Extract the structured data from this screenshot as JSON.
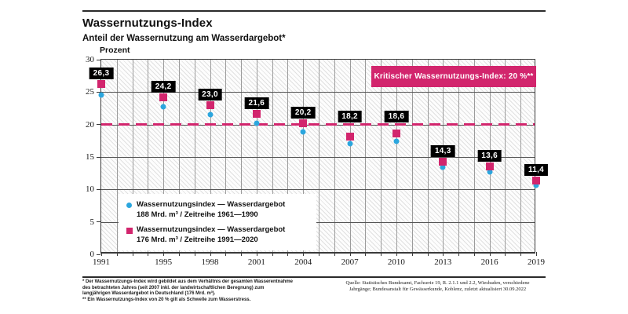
{
  "page": {
    "title": "Wassernutzungs-Index",
    "subtitle": "Anteil der Wassernutzung am Wasserdargebot*",
    "y_axis_unit": "Prozent"
  },
  "colors": {
    "pink": "#d2256d",
    "blue": "#2ba6de",
    "label_bg": "#000000",
    "label_text": "#ffffff"
  },
  "chart_data": {
    "type": "scatter",
    "title": "Wassernutzungs-Index",
    "subtitle": "Anteil der Wassernutzung am Wasserdargebot*",
    "ylabel": "Prozent",
    "xlim": [
      1991,
      2019
    ],
    "ylim": [
      0,
      30
    ],
    "y_ticks": [
      0,
      5,
      10,
      15,
      20,
      25,
      30
    ],
    "x_tick_years": [
      1991,
      1995,
      1998,
      2001,
      2004,
      2007,
      2010,
      2013,
      2016,
      2019
    ],
    "grid": "on",
    "x": [
      1991,
      1995,
      1998,
      2001,
      2004,
      2007,
      2010,
      2013,
      2016,
      2019
    ],
    "series": [
      {
        "name": "Wassernutzungsindex — Wasserdargebot 188 Mrd. m³ / Zeitreihe 1961—1990",
        "marker": "circle",
        "color": "#2ba6de",
        "values": [
          24.6,
          22.7,
          21.5,
          20.2,
          18.9,
          17.0,
          17.4,
          13.4,
          12.7,
          10.7
        ],
        "labeled": false
      },
      {
        "name": "Wassernutzungsindex — Wasserdargebot 176 Mrd. m³ / Zeitreihe 1991—2020",
        "marker": "square",
        "color": "#d2256d",
        "values": [
          26.3,
          24.2,
          23.0,
          21.6,
          20.2,
          18.2,
          18.6,
          14.3,
          13.6,
          11.4
        ],
        "display_labels": [
          "26,3",
          "24,2",
          "23,0",
          "21,6",
          "20,2",
          "18,2",
          "18,6",
          "14,3",
          "13,6",
          "11,4"
        ],
        "labeled": true
      }
    ],
    "critical_line": {
      "value": 20,
      "label": "Kritischer Wassernutzungs-Index: 20 %**",
      "color": "#d2256d"
    },
    "legend_position": "inside-bottom-left"
  },
  "legend": {
    "items": [
      {
        "marker": "circle",
        "color": "#2ba6de",
        "line1": "Wassernutzungsindex — Wasserdargebot",
        "line2": "188 Mrd. m³ / Zeitreihe 1961—1990"
      },
      {
        "marker": "square",
        "color": "#d2256d",
        "line1": "Wassernutzungsindex — Wasserdargebot",
        "line2": "176 Mrd. m³ / Zeitreihe 1991—2020"
      }
    ]
  },
  "footnotes": {
    "line1": "* Der Wassernutzungs-Index wird gebildet aus dem Verhältnis der gesamten Wasserentnahme",
    "line2": "des betrachteten Jahres (seit 2007 inkl. der landwirtschaftlichen Beregnung) zum",
    "line3": "langjährigen Wasserdargebot in Deutschland (176 Mrd. m³).",
    "line4": "** Ein Wassernutzungs-Index von 20 % gilt als Schwelle zum Wasserstress."
  },
  "source": {
    "line1": "Quelle: Statistisches Bundesamt, Fachserie 19, R. 2.1.1 und 2.2, Wiesbaden, verschiedene",
    "line2": "Jahrgänge; Bundesanstalt für Gewässerkunde, Koblenz, zuletzt aktualisiert 30.09.2022"
  }
}
